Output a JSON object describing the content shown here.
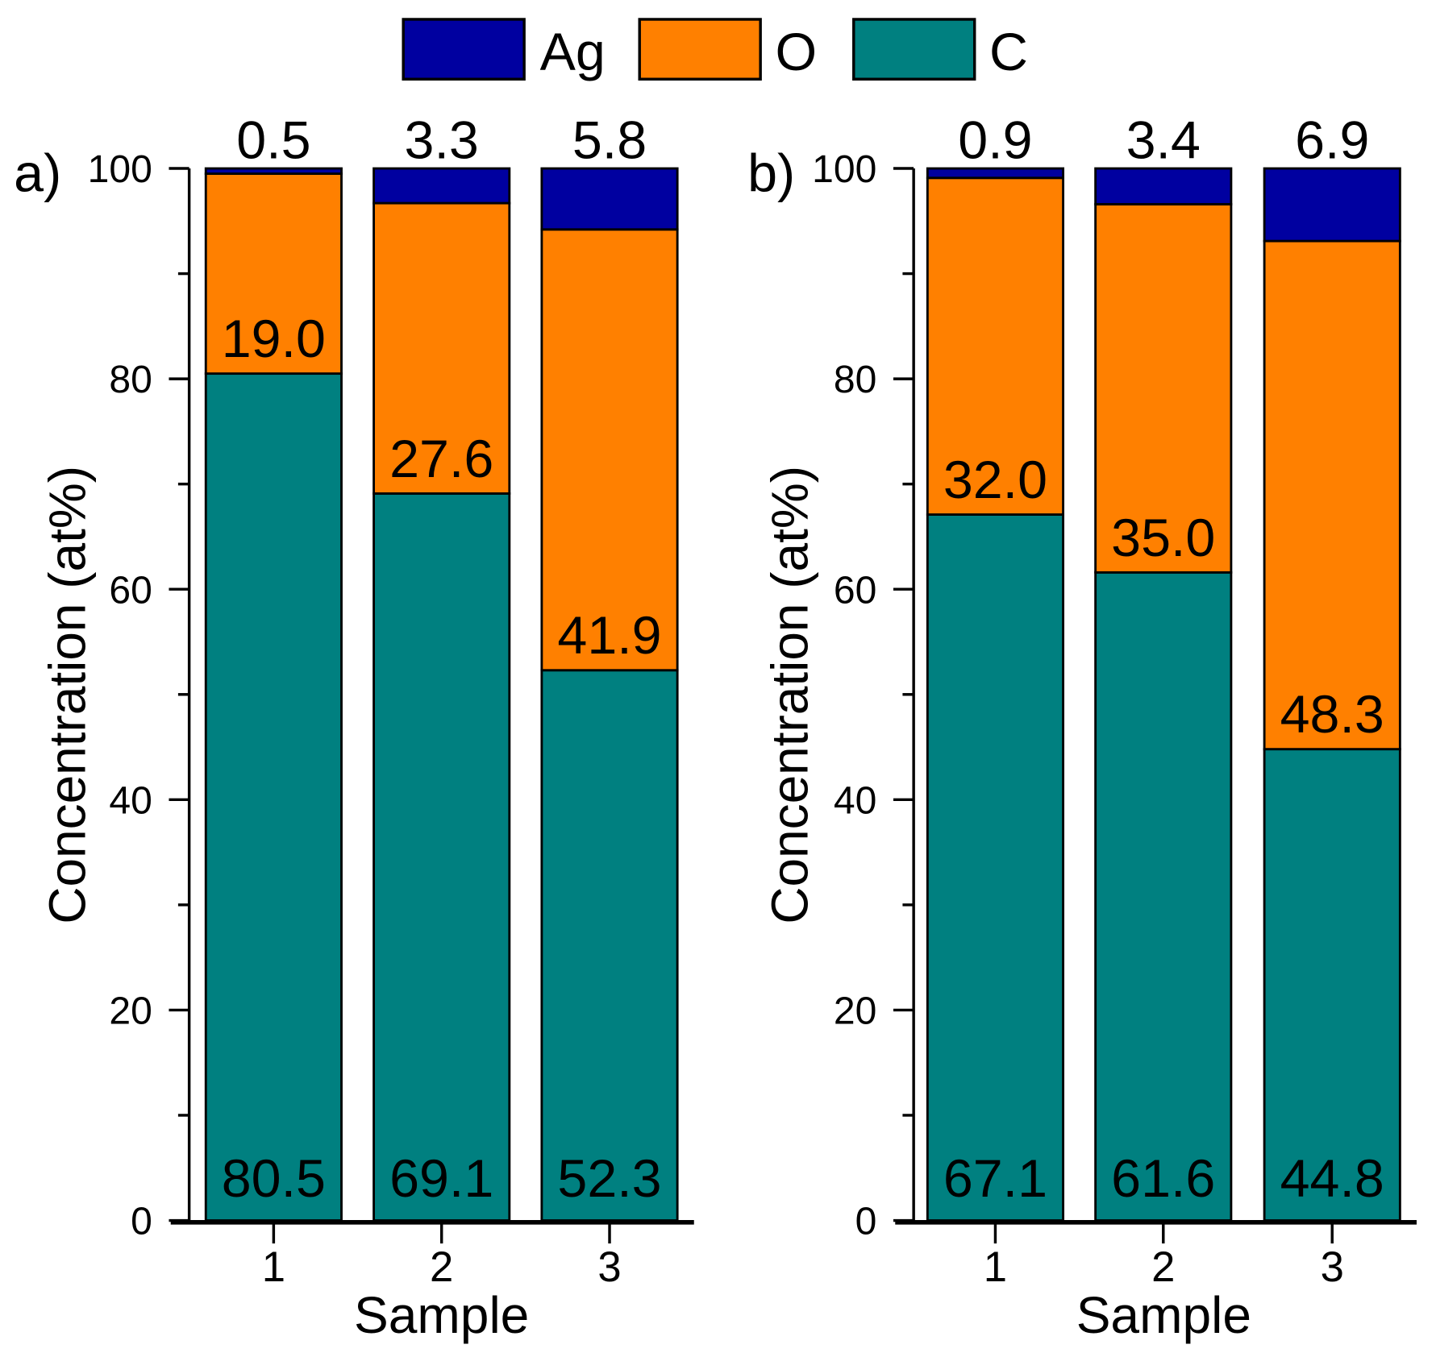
{
  "chart_data": [
    {
      "type": "bar",
      "stacked": true,
      "panel_label": "a)",
      "categories": [
        "1",
        "2",
        "3"
      ],
      "series": [
        {
          "name": "C",
          "values": [
            80.5,
            69.1,
            52.3
          ],
          "color": "#008080"
        },
        {
          "name": "O",
          "values": [
            19.0,
            27.6,
            41.9
          ],
          "color": "#FF8000"
        },
        {
          "name": "Ag",
          "values": [
            0.5,
            3.3,
            5.8
          ],
          "color": "#0000A0"
        }
      ],
      "labels": {
        "C": [
          "80.5",
          "69.1",
          "52.3"
        ],
        "O": [
          "19.0",
          "27.6",
          "41.9"
        ],
        "Ag": [
          "0.5",
          "3.3",
          "5.8"
        ]
      },
      "xlabel": "Sample",
      "ylabel": "Concentration (at%)",
      "ylim": [
        0,
        100
      ],
      "yticks": [
        "0",
        "20",
        "40",
        "60",
        "80",
        "100"
      ]
    },
    {
      "type": "bar",
      "stacked": true,
      "panel_label": "b)",
      "categories": [
        "1",
        "2",
        "3"
      ],
      "series": [
        {
          "name": "C",
          "values": [
            67.1,
            61.6,
            44.8
          ],
          "color": "#008080"
        },
        {
          "name": "O",
          "values": [
            32.0,
            35.0,
            48.3
          ],
          "color": "#FF8000"
        },
        {
          "name": "Ag",
          "values": [
            0.9,
            3.4,
            6.9
          ],
          "color": "#0000A0"
        }
      ],
      "labels": {
        "C": [
          "67.1",
          "61.6",
          "44.8"
        ],
        "O": [
          "32.0",
          "35.0",
          "48.3"
        ],
        "Ag": [
          "0.9",
          "3.4",
          "6.9"
        ]
      },
      "xlabel": "Sample",
      "ylabel": "Concentration (at%)",
      "ylim": [
        0,
        100
      ],
      "yticks": [
        "0",
        "20",
        "40",
        "60",
        "80",
        "100"
      ]
    }
  ],
  "legend": {
    "placement": "top-center",
    "items": [
      {
        "label": "Ag",
        "color": "#0000A0"
      },
      {
        "label": "O",
        "color": "#FF8000"
      },
      {
        "label": "C",
        "color": "#008080"
      }
    ]
  }
}
